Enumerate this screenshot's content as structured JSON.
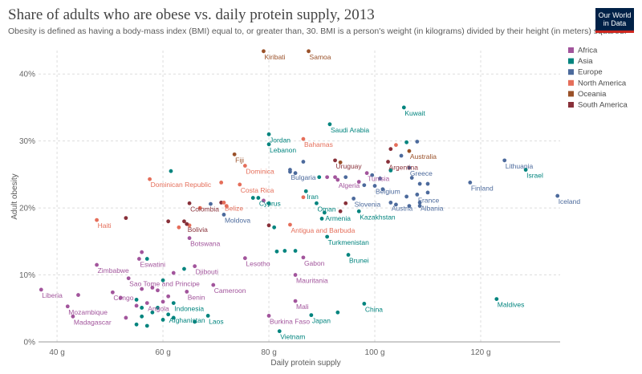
{
  "header": {
    "title": "Share of adults who are obese vs. daily protein supply, 2013",
    "subtitle": "Obesity is defined as having a body-mass index (BMI) equal to, or greater than, 30. BMI is a person's weight (in kilograms) divided by their height (in meters) squared.",
    "logo_line1": "Our World",
    "logo_line2": "in Data"
  },
  "colors": {
    "Africa": "#a2559c",
    "Asia": "#00847e",
    "Europe": "#4c6a9c",
    "North America": "#e56e5a",
    "Oceania": "#9a5129",
    "South America": "#883039"
  },
  "chart_data": {
    "type": "scatter",
    "title": "Share of adults who are obese vs. daily protein supply, 2013",
    "xlabel": "Daily protein supply",
    "ylabel": "Adult obesity",
    "xlim": [
      36.5,
      135
    ],
    "ylim": [
      0,
      43.5
    ],
    "x_ticks": [
      "40 g",
      "60 g",
      "80 g",
      "100 g",
      "120 g"
    ],
    "x_tick_values": [
      40,
      60,
      80,
      100,
      120
    ],
    "y_ticks": [
      "0%",
      "10%",
      "20%",
      "30%",
      "40%"
    ],
    "y_tick_values": [
      0,
      10,
      20,
      30,
      40
    ],
    "grid": true,
    "legend_position": "right",
    "legend": [
      "Africa",
      "Asia",
      "Europe",
      "North America",
      "Oceania",
      "South America"
    ],
    "labeled_points": [
      {
        "name": "Kiribati",
        "x": 79,
        "y": 43.4,
        "region": "Oceania"
      },
      {
        "name": "Samoa",
        "x": 87.5,
        "y": 43.4,
        "region": "Oceania"
      },
      {
        "name": "Kuwait",
        "x": 105.5,
        "y": 35,
        "region": "Asia"
      },
      {
        "name": "Saudi Arabia",
        "x": 91.5,
        "y": 32.5,
        "region": "Asia"
      },
      {
        "name": "Jordan",
        "x": 80,
        "y": 31,
        "region": "Asia"
      },
      {
        "name": "Bahamas",
        "x": 86.5,
        "y": 30.3,
        "region": "North America"
      },
      {
        "name": "Lebanon",
        "x": 80,
        "y": 29.5,
        "region": "Asia"
      },
      {
        "name": "Australia",
        "x": 106.5,
        "y": 28.5,
        "region": "Oceania"
      },
      {
        "name": "Fiji",
        "x": 73.5,
        "y": 28,
        "region": "Oceania"
      },
      {
        "name": "Lithuania",
        "x": 124.5,
        "y": 27.1,
        "region": "Europe"
      },
      {
        "name": "Uruguay",
        "x": 92.5,
        "y": 27.1,
        "region": "South America"
      },
      {
        "name": "Argentina",
        "x": 102.5,
        "y": 26.9,
        "region": "South America"
      },
      {
        "name": "Dominica",
        "x": 75.5,
        "y": 26.3,
        "region": "North America"
      },
      {
        "name": "Greece",
        "x": 106.5,
        "y": 26,
        "region": "Europe"
      },
      {
        "name": "Israel",
        "x": 128.5,
        "y": 25.7,
        "region": "Asia"
      },
      {
        "name": "Bulgaria",
        "x": 84,
        "y": 25.4,
        "region": "Europe"
      },
      {
        "name": "Tunisia",
        "x": 98.5,
        "y": 25.2,
        "region": "Africa"
      },
      {
        "name": "Dominican Republic",
        "x": 57.5,
        "y": 24.3,
        "region": "North America"
      },
      {
        "name": "Algeria",
        "x": 93,
        "y": 24.2,
        "region": "Africa"
      },
      {
        "name": "Finland",
        "x": 118,
        "y": 23.8,
        "region": "Europe"
      },
      {
        "name": "Costa Rica",
        "x": 74.5,
        "y": 23.5,
        "region": "North America"
      },
      {
        "name": "Belgium",
        "x": 100,
        "y": 23.3,
        "region": "Europe"
      },
      {
        "name": "Iran",
        "x": 87,
        "y": 22.5,
        "region": "Asia"
      },
      {
        "name": "France",
        "x": 108,
        "y": 22,
        "region": "Europe"
      },
      {
        "name": "Iceland",
        "x": 134.5,
        "y": 21.8,
        "region": "Europe"
      },
      {
        "name": "Cyprus",
        "x": 78,
        "y": 21.5,
        "region": "Asia"
      },
      {
        "name": "Slovenia",
        "x": 96,
        "y": 21.4,
        "region": "Europe"
      },
      {
        "name": "Austria",
        "x": 103,
        "y": 20.8,
        "region": "Europe"
      },
      {
        "name": "Albania",
        "x": 108.5,
        "y": 20.8,
        "region": "Europe"
      },
      {
        "name": "Colombia",
        "x": 65,
        "y": 20.7,
        "region": "South America"
      },
      {
        "name": "Belize",
        "x": 71.5,
        "y": 20.8,
        "region": "North America"
      },
      {
        "name": "Oman",
        "x": 89,
        "y": 20.7,
        "region": "Asia"
      },
      {
        "name": "Kazakhstan",
        "x": 97,
        "y": 19.5,
        "region": "Asia"
      },
      {
        "name": "Armenia",
        "x": 90.5,
        "y": 19.3,
        "region": "Asia"
      },
      {
        "name": "Moldova",
        "x": 71.5,
        "y": 19,
        "region": "Europe"
      },
      {
        "name": "Haiti",
        "x": 47.5,
        "y": 18.2,
        "region": "North America"
      },
      {
        "name": "Bolivia",
        "x": 64.5,
        "y": 17.6,
        "region": "South America"
      },
      {
        "name": "Antigua and Barbuda",
        "x": 84,
        "y": 17.5,
        "region": "North America"
      },
      {
        "name": "Turkmenistan",
        "x": 91,
        "y": 15.7,
        "region": "Asia"
      },
      {
        "name": "Botswana",
        "x": 65,
        "y": 15.5,
        "region": "Africa"
      },
      {
        "name": "Brunei",
        "x": 95,
        "y": 13,
        "region": "Asia"
      },
      {
        "name": "Gabon",
        "x": 86.5,
        "y": 12.6,
        "region": "Africa"
      },
      {
        "name": "Lesotho",
        "x": 75.5,
        "y": 12.5,
        "region": "Africa"
      },
      {
        "name": "Eswatini",
        "x": 55.5,
        "y": 12.4,
        "region": "Africa"
      },
      {
        "name": "Zimbabwe",
        "x": 47.5,
        "y": 11.5,
        "region": "Africa"
      },
      {
        "name": "Djibouti",
        "x": 66,
        "y": 11.3,
        "region": "Africa"
      },
      {
        "name": "Mauritania",
        "x": 85,
        "y": 10,
        "region": "Africa"
      },
      {
        "name": "Sao Tome and Principe",
        "x": 53.5,
        "y": 9.5,
        "region": "Africa"
      },
      {
        "name": "Cameroon",
        "x": 69.5,
        "y": 8.5,
        "region": "Africa"
      },
      {
        "name": "Benin",
        "x": 64.5,
        "y": 7.5,
        "region": "Africa"
      },
      {
        "name": "Congo",
        "x": 50.5,
        "y": 7.4,
        "region": "Africa"
      },
      {
        "name": "Liberia",
        "x": 37,
        "y": 7.8,
        "region": "Africa"
      },
      {
        "name": "Maldives",
        "x": 123,
        "y": 6.4,
        "region": "Asia"
      },
      {
        "name": "Indonesia",
        "x": 62,
        "y": 5.8,
        "region": "Asia"
      },
      {
        "name": "Angola",
        "x": 57,
        "y": 5.8,
        "region": "Africa"
      },
      {
        "name": "China",
        "x": 98,
        "y": 5.7,
        "region": "Asia"
      },
      {
        "name": "Mali",
        "x": 85,
        "y": 6.1,
        "region": "Africa"
      },
      {
        "name": "Mozambique",
        "x": 42,
        "y": 5.3,
        "region": "Africa"
      },
      {
        "name": "Afghanistan",
        "x": 61,
        "y": 4.1,
        "region": "Asia"
      },
      {
        "name": "Laos",
        "x": 68.5,
        "y": 3.9,
        "region": "Asia"
      },
      {
        "name": "Burkina Faso",
        "x": 80,
        "y": 3.9,
        "region": "Africa"
      },
      {
        "name": "Japan",
        "x": 88,
        "y": 4,
        "region": "Asia"
      },
      {
        "name": "Madagascar",
        "x": 43,
        "y": 3.8,
        "region": "Africa"
      },
      {
        "name": "Vietnam",
        "x": 82,
        "y": 1.6,
        "region": "Asia"
      }
    ],
    "unlabeled_points": [
      {
        "x": 61.5,
        "y": 25.5,
        "region": "Asia"
      },
      {
        "x": 71,
        "y": 23.8,
        "region": "North America"
      },
      {
        "x": 77,
        "y": 21.5,
        "region": "Asia"
      },
      {
        "x": 84,
        "y": 25.7,
        "region": "Europe"
      },
      {
        "x": 85,
        "y": 25.2,
        "region": "Europe"
      },
      {
        "x": 86.5,
        "y": 26.9,
        "region": "Europe"
      },
      {
        "x": 89.5,
        "y": 24.6,
        "region": "Asia"
      },
      {
        "x": 91,
        "y": 24.6,
        "region": "Africa"
      },
      {
        "x": 92.5,
        "y": 24.6,
        "region": "Africa"
      },
      {
        "x": 93.5,
        "y": 26.8,
        "region": "Oceania"
      },
      {
        "x": 94.5,
        "y": 24.6,
        "region": "Europe"
      },
      {
        "x": 97,
        "y": 23.9,
        "region": "Africa"
      },
      {
        "x": 98,
        "y": 23.4,
        "region": "Europe"
      },
      {
        "x": 99.5,
        "y": 24.9,
        "region": "Europe"
      },
      {
        "x": 101,
        "y": 24.4,
        "region": "Europe"
      },
      {
        "x": 101.5,
        "y": 22.8,
        "region": "Europe"
      },
      {
        "x": 103,
        "y": 25.6,
        "region": "Asia"
      },
      {
        "x": 103,
        "y": 28.8,
        "region": "South America"
      },
      {
        "x": 104,
        "y": 29.4,
        "region": "North America"
      },
      {
        "x": 105,
        "y": 27.8,
        "region": "Europe"
      },
      {
        "x": 106,
        "y": 29.8,
        "region": "Asia"
      },
      {
        "x": 107,
        "y": 24.5,
        "region": "Europe"
      },
      {
        "x": 108,
        "y": 29.9,
        "region": "Europe"
      },
      {
        "x": 108.5,
        "y": 23.6,
        "region": "Europe"
      },
      {
        "x": 110,
        "y": 22.3,
        "region": "Europe"
      },
      {
        "x": 110,
        "y": 23.6,
        "region": "Europe"
      },
      {
        "x": 106,
        "y": 21.7,
        "region": "Europe"
      },
      {
        "x": 108.5,
        "y": 20.3,
        "region": "Europe"
      },
      {
        "x": 106.5,
        "y": 20.3,
        "region": "Europe"
      },
      {
        "x": 104,
        "y": 20.5,
        "region": "Europe"
      },
      {
        "x": 94.5,
        "y": 20.7,
        "region": "South America"
      },
      {
        "x": 93.5,
        "y": 19.5,
        "region": "South America"
      },
      {
        "x": 86.5,
        "y": 21.6,
        "region": "North America"
      },
      {
        "x": 80,
        "y": 20.7,
        "region": "Asia"
      },
      {
        "x": 79,
        "y": 21.1,
        "region": "Africa"
      },
      {
        "x": 72,
        "y": 20.3,
        "region": "North America"
      },
      {
        "x": 71,
        "y": 20.8,
        "region": "South America"
      },
      {
        "x": 69,
        "y": 20.6,
        "region": "Europe"
      },
      {
        "x": 67,
        "y": 20,
        "region": "North America"
      },
      {
        "x": 64,
        "y": 18,
        "region": "South America"
      },
      {
        "x": 61,
        "y": 18,
        "region": "South America"
      },
      {
        "x": 63,
        "y": 17.1,
        "region": "North America"
      },
      {
        "x": 65,
        "y": 17.4,
        "region": "North America"
      },
      {
        "x": 80,
        "y": 17.4,
        "region": "South America"
      },
      {
        "x": 81,
        "y": 17.1,
        "region": "Asia"
      },
      {
        "x": 90,
        "y": 18.4,
        "region": "Asia"
      },
      {
        "x": 53,
        "y": 18.5,
        "region": "South America"
      },
      {
        "x": 56,
        "y": 13.4,
        "region": "Africa"
      },
      {
        "x": 57,
        "y": 12.4,
        "region": "Asia"
      },
      {
        "x": 81.5,
        "y": 13.5,
        "region": "Asia"
      },
      {
        "x": 83,
        "y": 13.6,
        "region": "Asia"
      },
      {
        "x": 85,
        "y": 13.6,
        "region": "Asia"
      },
      {
        "x": 64,
        "y": 10.9,
        "region": "Asia"
      },
      {
        "x": 62,
        "y": 10.3,
        "region": "Africa"
      },
      {
        "x": 60,
        "y": 9.2,
        "region": "Asia"
      },
      {
        "x": 58,
        "y": 8.1,
        "region": "Africa"
      },
      {
        "x": 56,
        "y": 7.9,
        "region": "Africa"
      },
      {
        "x": 59,
        "y": 7.7,
        "region": "Africa"
      },
      {
        "x": 61,
        "y": 6.8,
        "region": "Africa"
      },
      {
        "x": 60,
        "y": 6,
        "region": "Africa"
      },
      {
        "x": 55,
        "y": 6.3,
        "region": "Asia"
      },
      {
        "x": 55,
        "y": 5.4,
        "region": "Africa"
      },
      {
        "x": 56,
        "y": 5.1,
        "region": "Asia"
      },
      {
        "x": 59,
        "y": 5.1,
        "region": "Asia"
      },
      {
        "x": 58,
        "y": 4.4,
        "region": "Asia"
      },
      {
        "x": 56,
        "y": 3.8,
        "region": "Asia"
      },
      {
        "x": 62,
        "y": 3.6,
        "region": "Asia"
      },
      {
        "x": 60,
        "y": 3.3,
        "region": "Asia"
      },
      {
        "x": 55,
        "y": 2.6,
        "region": "Asia"
      },
      {
        "x": 57,
        "y": 2.4,
        "region": "Asia"
      },
      {
        "x": 66,
        "y": 3,
        "region": "Asia"
      },
      {
        "x": 44,
        "y": 7,
        "region": "Africa"
      },
      {
        "x": 52,
        "y": 6.6,
        "region": "Africa"
      },
      {
        "x": 53,
        "y": 3.6,
        "region": "Africa"
      },
      {
        "x": 93,
        "y": 4.4,
        "region": "Asia"
      }
    ]
  }
}
